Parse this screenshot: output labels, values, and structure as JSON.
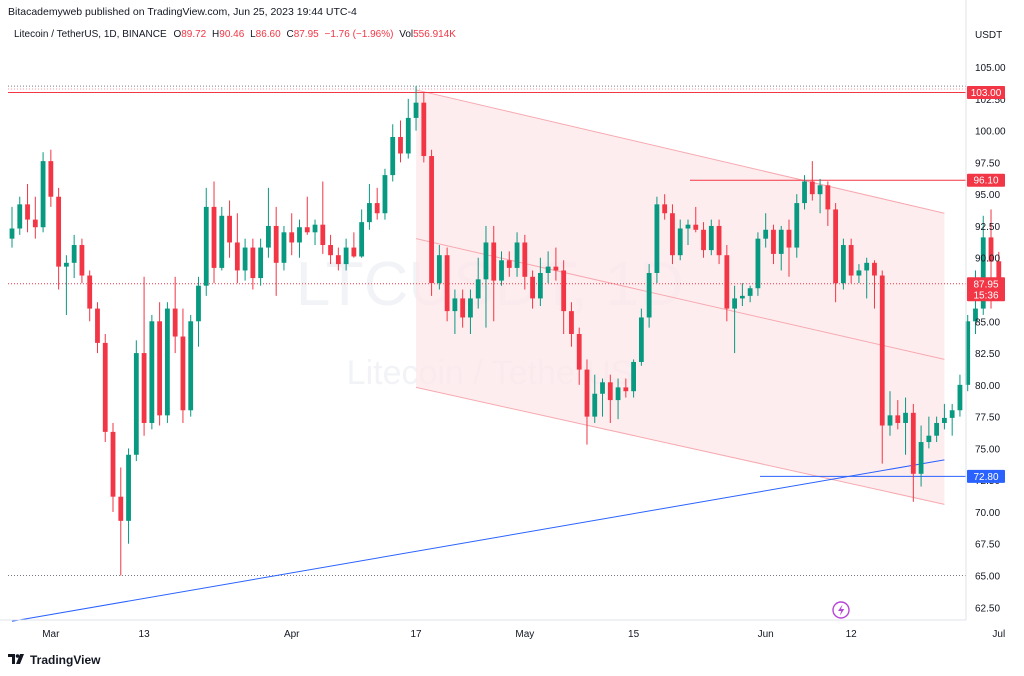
{
  "header": {
    "publisher": "Bitacademyweb published on TradingView.com, Jun 25, 2023 19:44 UTC-4"
  },
  "legend": {
    "symbol": "Litecoin / TetherUS, 1D, BINANCE",
    "o_label": "O",
    "o_value": "89.72",
    "h_label": "H",
    "h_value": "90.46",
    "l_label": "L",
    "l_value": "86.60",
    "c_label": "C",
    "c_value": "87.95",
    "change": "−1.76 (−1.96%)",
    "vol_label": "Vol",
    "vol_value": "556.914K"
  },
  "watermark": {
    "ticker": "LTCUSDT, 1D",
    "name": "Litecoin / TetherUS"
  },
  "footer": {
    "brand": "TradingView"
  },
  "chart_data": {
    "type": "candlestick",
    "currency": "USDT",
    "ylim": [
      61.5,
      106.5
    ],
    "y_ticks": [
      "62.50",
      "65.00",
      "67.50",
      "70.00",
      "72.50",
      "75.00",
      "77.50",
      "80.00",
      "82.50",
      "85.00",
      "87.50",
      "90.00",
      "92.50",
      "95.00",
      "97.50",
      "100.00",
      "102.50",
      "105.00"
    ],
    "x_ticks": [
      {
        "label": "Mar",
        "date": "2023-03-01"
      },
      {
        "label": "13",
        "date": "2023-03-13"
      },
      {
        "label": "Apr",
        "date": "2023-04-01"
      },
      {
        "label": "17",
        "date": "2023-04-17"
      },
      {
        "label": "May",
        "date": "2023-05-01"
      },
      {
        "label": "15",
        "date": "2023-05-15"
      },
      {
        "label": "Jun",
        "date": "2023-06-01"
      },
      {
        "label": "12",
        "date": "2023-06-12"
      },
      {
        "label": "Jul",
        "date": "2023-07-01"
      }
    ],
    "price_lines": [
      {
        "value": 103.0,
        "label": "103.00",
        "color": "#f23645"
      },
      {
        "value": 96.1,
        "label": "96.10",
        "color": "#f23645"
      },
      {
        "value": 72.8,
        "label": "72.80",
        "color": "#2962ff"
      }
    ],
    "last_price": {
      "value": 87.95,
      "label": "87.95",
      "countdown": "15:36",
      "color": "#f23645"
    },
    "colors": {
      "up": "#089981",
      "down": "#f23645",
      "channel_fill": "#fde7e9",
      "channel_line": "#f7a9b0",
      "trendline": "#2962ff"
    },
    "channel": {
      "upper": {
        "start": [
          "2023-04-17",
          103.2
        ],
        "end": [
          "2023-06-24",
          93.5
        ]
      },
      "middle": {
        "start": [
          "2023-04-17",
          91.5
        ],
        "end": [
          "2023-06-24",
          82.0
        ]
      },
      "lower": {
        "start": [
          "2023-04-17",
          79.8
        ],
        "end": [
          "2023-06-24",
          70.6
        ]
      }
    },
    "trendline": {
      "start": [
        "2023-02-24",
        61.4
      ],
      "end": [
        "2023-06-24",
        74.1
      ]
    },
    "candles": [
      {
        "date": "2023-02-24",
        "o": 91.5,
        "h": 94.0,
        "l": 90.8,
        "c": 92.3
      },
      {
        "date": "2023-02-25",
        "o": 92.3,
        "h": 94.8,
        "l": 91.8,
        "c": 94.2
      },
      {
        "date": "2023-02-26",
        "o": 94.2,
        "h": 95.8,
        "l": 92.0,
        "c": 93.0
      },
      {
        "date": "2023-02-27",
        "o": 93.0,
        "h": 94.8,
        "l": 91.5,
        "c": 92.4
      },
      {
        "date": "2023-02-28",
        "o": 92.4,
        "h": 98.3,
        "l": 92.0,
        "c": 97.6
      },
      {
        "date": "2023-03-01",
        "o": 97.6,
        "h": 98.5,
        "l": 94.0,
        "c": 94.8
      },
      {
        "date": "2023-03-02",
        "o": 94.8,
        "h": 95.5,
        "l": 87.5,
        "c": 89.3
      },
      {
        "date": "2023-03-03",
        "o": 89.3,
        "h": 90.2,
        "l": 85.5,
        "c": 89.6
      },
      {
        "date": "2023-03-04",
        "o": 89.6,
        "h": 91.8,
        "l": 88.4,
        "c": 91.0
      },
      {
        "date": "2023-03-05",
        "o": 91.0,
        "h": 91.5,
        "l": 88.0,
        "c": 88.6
      },
      {
        "date": "2023-03-06",
        "o": 88.6,
        "h": 89.0,
        "l": 85.0,
        "c": 86.0
      },
      {
        "date": "2023-03-07",
        "o": 86.0,
        "h": 86.5,
        "l": 82.5,
        "c": 83.3
      },
      {
        "date": "2023-03-08",
        "o": 83.3,
        "h": 84.0,
        "l": 75.5,
        "c": 76.3
      },
      {
        "date": "2023-03-09",
        "o": 76.3,
        "h": 77.0,
        "l": 70.0,
        "c": 71.2
      },
      {
        "date": "2023-03-10",
        "o": 71.2,
        "h": 73.5,
        "l": 65.0,
        "c": 69.3
      },
      {
        "date": "2023-03-11",
        "o": 69.3,
        "h": 75.0,
        "l": 67.5,
        "c": 74.5
      },
      {
        "date": "2023-03-12",
        "o": 74.5,
        "h": 83.5,
        "l": 74.0,
        "c": 82.5
      },
      {
        "date": "2023-03-13",
        "o": 82.5,
        "h": 88.5,
        "l": 76.0,
        "c": 77.0
      },
      {
        "date": "2023-03-14",
        "o": 77.0,
        "h": 85.5,
        "l": 76.5,
        "c": 85.0
      },
      {
        "date": "2023-03-15",
        "o": 85.0,
        "h": 86.5,
        "l": 76.8,
        "c": 77.6
      },
      {
        "date": "2023-03-16",
        "o": 77.6,
        "h": 86.5,
        "l": 77.0,
        "c": 86.0
      },
      {
        "date": "2023-03-17",
        "o": 86.0,
        "h": 88.5,
        "l": 82.5,
        "c": 83.8
      },
      {
        "date": "2023-03-18",
        "o": 83.8,
        "h": 86.0,
        "l": 77.0,
        "c": 78.0
      },
      {
        "date": "2023-03-19",
        "o": 78.0,
        "h": 85.5,
        "l": 77.5,
        "c": 85.0
      },
      {
        "date": "2023-03-20",
        "o": 85.0,
        "h": 88.5,
        "l": 83.0,
        "c": 87.8
      },
      {
        "date": "2023-03-21",
        "o": 87.8,
        "h": 95.5,
        "l": 87.0,
        "c": 94.0
      },
      {
        "date": "2023-03-22",
        "o": 94.0,
        "h": 96.0,
        "l": 88.0,
        "c": 89.2
      },
      {
        "date": "2023-03-23",
        "o": 89.2,
        "h": 94.0,
        "l": 89.0,
        "c": 93.3
      },
      {
        "date": "2023-03-24",
        "o": 93.3,
        "h": 94.5,
        "l": 90.0,
        "c": 91.2
      },
      {
        "date": "2023-03-25",
        "o": 91.2,
        "h": 93.5,
        "l": 88.0,
        "c": 89.0
      },
      {
        "date": "2023-03-26",
        "o": 89.0,
        "h": 91.5,
        "l": 88.2,
        "c": 90.8
      },
      {
        "date": "2023-03-27",
        "o": 90.8,
        "h": 91.5,
        "l": 87.5,
        "c": 88.4
      },
      {
        "date": "2023-03-28",
        "o": 88.4,
        "h": 91.5,
        "l": 87.8,
        "c": 90.8
      },
      {
        "date": "2023-03-29",
        "o": 90.8,
        "h": 95.5,
        "l": 90.0,
        "c": 92.5
      },
      {
        "date": "2023-03-30",
        "o": 92.5,
        "h": 94.0,
        "l": 87.0,
        "c": 89.6
      },
      {
        "date": "2023-03-31",
        "o": 89.6,
        "h": 92.5,
        "l": 89.0,
        "c": 92.0
      },
      {
        "date": "2023-04-01",
        "o": 92.0,
        "h": 93.5,
        "l": 90.2,
        "c": 91.2
      },
      {
        "date": "2023-04-02",
        "o": 91.2,
        "h": 93.0,
        "l": 90.0,
        "c": 92.4
      },
      {
        "date": "2023-04-03",
        "o": 92.4,
        "h": 94.8,
        "l": 91.8,
        "c": 92.0
      },
      {
        "date": "2023-04-04",
        "o": 92.0,
        "h": 93.0,
        "l": 91.0,
        "c": 92.6
      },
      {
        "date": "2023-04-05",
        "o": 92.6,
        "h": 96.0,
        "l": 90.3,
        "c": 91.0
      },
      {
        "date": "2023-04-06",
        "o": 91.0,
        "h": 91.8,
        "l": 89.5,
        "c": 90.2
      },
      {
        "date": "2023-04-07",
        "o": 90.2,
        "h": 90.8,
        "l": 89.0,
        "c": 89.5
      },
      {
        "date": "2023-04-08",
        "o": 89.5,
        "h": 91.5,
        "l": 89.0,
        "c": 90.8
      },
      {
        "date": "2023-04-09",
        "o": 90.8,
        "h": 92.0,
        "l": 90.0,
        "c": 90.1
      },
      {
        "date": "2023-04-10",
        "o": 90.1,
        "h": 93.8,
        "l": 90.0,
        "c": 92.8
      },
      {
        "date": "2023-04-11",
        "o": 92.8,
        "h": 95.8,
        "l": 92.2,
        "c": 94.3
      },
      {
        "date": "2023-04-12",
        "o": 94.3,
        "h": 95.5,
        "l": 93.0,
        "c": 93.5
      },
      {
        "date": "2023-04-13",
        "o": 93.5,
        "h": 97.0,
        "l": 93.0,
        "c": 96.5
      },
      {
        "date": "2023-04-14",
        "o": 96.5,
        "h": 100.5,
        "l": 96.0,
        "c": 99.5
      },
      {
        "date": "2023-04-15",
        "o": 99.5,
        "h": 100.8,
        "l": 97.5,
        "c": 98.2
      },
      {
        "date": "2023-04-16",
        "o": 98.2,
        "h": 102.5,
        "l": 97.8,
        "c": 101.0
      },
      {
        "date": "2023-04-17",
        "o": 101.0,
        "h": 103.5,
        "l": 100.0,
        "c": 102.2
      },
      {
        "date": "2023-04-18",
        "o": 102.2,
        "h": 103.0,
        "l": 97.5,
        "c": 98.0
      },
      {
        "date": "2023-04-19",
        "o": 98.0,
        "h": 98.5,
        "l": 87.0,
        "c": 88.0
      },
      {
        "date": "2023-04-20",
        "o": 88.0,
        "h": 91.0,
        "l": 87.5,
        "c": 90.2
      },
      {
        "date": "2023-04-21",
        "o": 90.2,
        "h": 90.8,
        "l": 85.0,
        "c": 85.8
      },
      {
        "date": "2023-04-22",
        "o": 85.8,
        "h": 87.5,
        "l": 84.0,
        "c": 86.8
      },
      {
        "date": "2023-04-23",
        "o": 86.8,
        "h": 87.5,
        "l": 84.5,
        "c": 85.3
      },
      {
        "date": "2023-04-24",
        "o": 85.3,
        "h": 87.5,
        "l": 84.0,
        "c": 86.8
      },
      {
        "date": "2023-04-25",
        "o": 86.8,
        "h": 90.0,
        "l": 86.0,
        "c": 88.3
      },
      {
        "date": "2023-04-26",
        "o": 88.3,
        "h": 92.5,
        "l": 84.5,
        "c": 91.2
      },
      {
        "date": "2023-04-27",
        "o": 91.2,
        "h": 92.5,
        "l": 85.0,
        "c": 88.2
      },
      {
        "date": "2023-04-28",
        "o": 88.2,
        "h": 90.5,
        "l": 87.8,
        "c": 89.8
      },
      {
        "date": "2023-04-29",
        "o": 89.8,
        "h": 90.5,
        "l": 88.5,
        "c": 89.2
      },
      {
        "date": "2023-04-30",
        "o": 89.2,
        "h": 92.0,
        "l": 88.5,
        "c": 91.2
      },
      {
        "date": "2023-05-01",
        "o": 91.2,
        "h": 91.8,
        "l": 87.5,
        "c": 88.5
      },
      {
        "date": "2023-05-02",
        "o": 88.5,
        "h": 89.0,
        "l": 86.0,
        "c": 86.8
      },
      {
        "date": "2023-05-03",
        "o": 86.8,
        "h": 90.0,
        "l": 86.2,
        "c": 88.8
      },
      {
        "date": "2023-05-04",
        "o": 88.8,
        "h": 90.5,
        "l": 88.0,
        "c": 89.3
      },
      {
        "date": "2023-05-05",
        "o": 89.3,
        "h": 90.8,
        "l": 88.2,
        "c": 89.0
      },
      {
        "date": "2023-05-06",
        "o": 89.0,
        "h": 89.8,
        "l": 84.0,
        "c": 85.8
      },
      {
        "date": "2023-05-07",
        "o": 85.8,
        "h": 86.5,
        "l": 83.0,
        "c": 84.0
      },
      {
        "date": "2023-05-08",
        "o": 84.0,
        "h": 84.5,
        "l": 80.0,
        "c": 81.2
      },
      {
        "date": "2023-05-09",
        "o": 81.2,
        "h": 82.0,
        "l": 75.3,
        "c": 77.5
      },
      {
        "date": "2023-05-10",
        "o": 77.5,
        "h": 80.8,
        "l": 77.0,
        "c": 79.3
      },
      {
        "date": "2023-05-11",
        "o": 79.3,
        "h": 80.5,
        "l": 77.5,
        "c": 80.2
      },
      {
        "date": "2023-05-12",
        "o": 80.2,
        "h": 80.8,
        "l": 77.0,
        "c": 78.8
      },
      {
        "date": "2023-05-13",
        "o": 78.8,
        "h": 80.5,
        "l": 77.3,
        "c": 79.8
      },
      {
        "date": "2023-05-14",
        "o": 79.8,
        "h": 80.5,
        "l": 79.0,
        "c": 79.5
      },
      {
        "date": "2023-05-15",
        "o": 79.5,
        "h": 82.0,
        "l": 79.0,
        "c": 81.8
      },
      {
        "date": "2023-05-16",
        "o": 81.8,
        "h": 86.0,
        "l": 81.5,
        "c": 85.3
      },
      {
        "date": "2023-05-17",
        "o": 85.3,
        "h": 89.5,
        "l": 84.5,
        "c": 88.8
      },
      {
        "date": "2023-05-18",
        "o": 88.8,
        "h": 94.8,
        "l": 88.0,
        "c": 94.2
      },
      {
        "date": "2023-05-19",
        "o": 94.2,
        "h": 95.0,
        "l": 93.0,
        "c": 93.5
      },
      {
        "date": "2023-05-20",
        "o": 93.5,
        "h": 94.2,
        "l": 89.5,
        "c": 90.2
      },
      {
        "date": "2023-05-21",
        "o": 90.2,
        "h": 93.0,
        "l": 89.8,
        "c": 92.3
      },
      {
        "date": "2023-05-22",
        "o": 92.3,
        "h": 93.0,
        "l": 91.0,
        "c": 92.6
      },
      {
        "date": "2023-05-23",
        "o": 92.6,
        "h": 94.0,
        "l": 92.0,
        "c": 92.2
      },
      {
        "date": "2023-05-24",
        "o": 92.2,
        "h": 92.8,
        "l": 90.0,
        "c": 90.6
      },
      {
        "date": "2023-05-25",
        "o": 90.6,
        "h": 93.0,
        "l": 90.2,
        "c": 92.5
      },
      {
        "date": "2023-05-26",
        "o": 92.5,
        "h": 93.0,
        "l": 89.5,
        "c": 90.2
      },
      {
        "date": "2023-05-27",
        "o": 90.2,
        "h": 91.0,
        "l": 85.0,
        "c": 86.0
      },
      {
        "date": "2023-05-28",
        "o": 86.0,
        "h": 87.8,
        "l": 82.5,
        "c": 86.8
      },
      {
        "date": "2023-05-29",
        "o": 86.8,
        "h": 88.0,
        "l": 86.2,
        "c": 87.0
      },
      {
        "date": "2023-05-30",
        "o": 87.0,
        "h": 87.8,
        "l": 86.5,
        "c": 87.6
      },
      {
        "date": "2023-05-31",
        "o": 87.6,
        "h": 92.0,
        "l": 87.0,
        "c": 91.5
      },
      {
        "date": "2023-06-01",
        "o": 91.5,
        "h": 93.5,
        "l": 90.8,
        "c": 92.2
      },
      {
        "date": "2023-06-02",
        "o": 92.2,
        "h": 92.6,
        "l": 89.5,
        "c": 90.3
      },
      {
        "date": "2023-06-03",
        "o": 90.3,
        "h": 92.5,
        "l": 89.0,
        "c": 92.2
      },
      {
        "date": "2023-06-04",
        "o": 92.2,
        "h": 93.0,
        "l": 88.5,
        "c": 90.8
      },
      {
        "date": "2023-06-05",
        "o": 90.8,
        "h": 95.0,
        "l": 90.0,
        "c": 94.3
      },
      {
        "date": "2023-06-06",
        "o": 94.3,
        "h": 96.5,
        "l": 93.8,
        "c": 96.0
      },
      {
        "date": "2023-06-07",
        "o": 96.0,
        "h": 97.6,
        "l": 94.5,
        "c": 95.0
      },
      {
        "date": "2023-06-08",
        "o": 95.0,
        "h": 96.2,
        "l": 93.5,
        "c": 95.7
      },
      {
        "date": "2023-06-09",
        "o": 95.7,
        "h": 96.0,
        "l": 92.5,
        "c": 93.8
      },
      {
        "date": "2023-06-10",
        "o": 93.8,
        "h": 94.3,
        "l": 86.5,
        "c": 88.0
      },
      {
        "date": "2023-06-11",
        "o": 88.0,
        "h": 91.5,
        "l": 87.5,
        "c": 91.0
      },
      {
        "date": "2023-06-12",
        "o": 91.0,
        "h": 91.5,
        "l": 88.0,
        "c": 88.6
      },
      {
        "date": "2023-06-13",
        "o": 88.6,
        "h": 89.5,
        "l": 88.0,
        "c": 89.0
      },
      {
        "date": "2023-06-14",
        "o": 89.0,
        "h": 90.0,
        "l": 86.8,
        "c": 89.6
      },
      {
        "date": "2023-06-15",
        "o": 89.6,
        "h": 89.8,
        "l": 86.0,
        "c": 88.6
      },
      {
        "date": "2023-06-16",
        "o": 88.6,
        "h": 89.0,
        "l": 73.8,
        "c": 76.8
      },
      {
        "date": "2023-06-17",
        "o": 76.8,
        "h": 79.5,
        "l": 76.0,
        "c": 77.6
      },
      {
        "date": "2023-06-18",
        "o": 77.6,
        "h": 78.8,
        "l": 76.5,
        "c": 77.0
      },
      {
        "date": "2023-06-19",
        "o": 77.0,
        "h": 79.0,
        "l": 74.5,
        "c": 77.8
      },
      {
        "date": "2023-06-20",
        "o": 77.8,
        "h": 78.5,
        "l": 70.8,
        "c": 73.0
      },
      {
        "date": "2023-06-21",
        "o": 73.0,
        "h": 76.8,
        "l": 72.0,
        "c": 75.5
      },
      {
        "date": "2023-06-22",
        "o": 75.5,
        "h": 77.5,
        "l": 75.0,
        "c": 76.0
      },
      {
        "date": "2023-06-23",
        "o": 76.0,
        "h": 77.5,
        "l": 75.5,
        "c": 77.0
      },
      {
        "date": "2023-06-24",
        "o": 77.0,
        "h": 78.5,
        "l": 76.5,
        "c": 77.4
      },
      {
        "date": "2023-06-25",
        "o": 77.4,
        "h": 78.5,
        "l": 76.0,
        "c": 78.0
      },
      {
        "date": "2023-06-26",
        "o": 78.0,
        "h": 80.8,
        "l": 77.5,
        "c": 80.0
      },
      {
        "date": "2023-06-27",
        "o": 80.0,
        "h": 85.5,
        "l": 79.5,
        "c": 85.0
      },
      {
        "date": "2023-06-28",
        "o": 85.0,
        "h": 89.0,
        "l": 84.0,
        "c": 86.0
      },
      {
        "date": "2023-06-29",
        "o": 86.0,
        "h": 93.3,
        "l": 85.5,
        "c": 91.6
      },
      {
        "date": "2023-06-30",
        "o": 91.6,
        "h": 93.8,
        "l": 86.0,
        "c": 89.7
      },
      {
        "date": "2023-07-01",
        "o": 89.72,
        "h": 90.46,
        "l": 86.6,
        "c": 87.95
      }
    ]
  }
}
